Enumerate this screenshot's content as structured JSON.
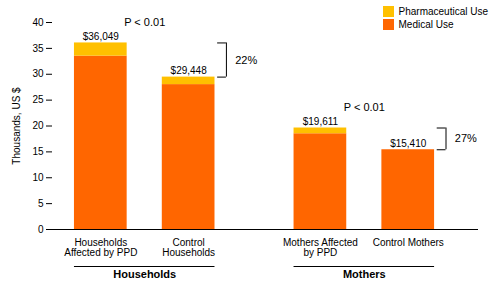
{
  "chart_data": {
    "type": "bar",
    "stacked": true,
    "categories": [
      "Households\nAffected by PPD",
      "Control\nHouseholds",
      "Mothers Affected\nby PPD",
      "Control Mothers"
    ],
    "series": [
      {
        "name": "Medical Use",
        "color": "#FF6600",
        "values": [
          33.5,
          28.0,
          18.5,
          15.41
        ]
      },
      {
        "name": "Pharmaceutical Use",
        "color": "#FFC000",
        "values": [
          2.549,
          1.448,
          1.111,
          0.0
        ]
      }
    ],
    "totals": {
      "values": [
        36.049,
        29.448,
        19.611,
        15.41
      ],
      "value_labels": [
        "$36,049",
        "$29,448",
        "$19,611",
        "$15,410"
      ]
    },
    "groups": [
      {
        "label": "Households",
        "members": [
          "Households\nAffected by PPD",
          "Control\nHouseholds"
        ],
        "annotation": "P < 0.01",
        "difference_label": "22%"
      },
      {
        "label": "Mothers",
        "members": [
          "Mothers Affected\nby PPD",
          "Control Mothers"
        ],
        "annotation": "P < 0.01",
        "difference_label": "27%"
      }
    ],
    "ylabel": "Thousands, US $",
    "ylim": [
      0,
      40
    ],
    "yticks": [
      0,
      5,
      10,
      15,
      20,
      25,
      30,
      35,
      40
    ],
    "grid": false,
    "legend": "upper right"
  }
}
